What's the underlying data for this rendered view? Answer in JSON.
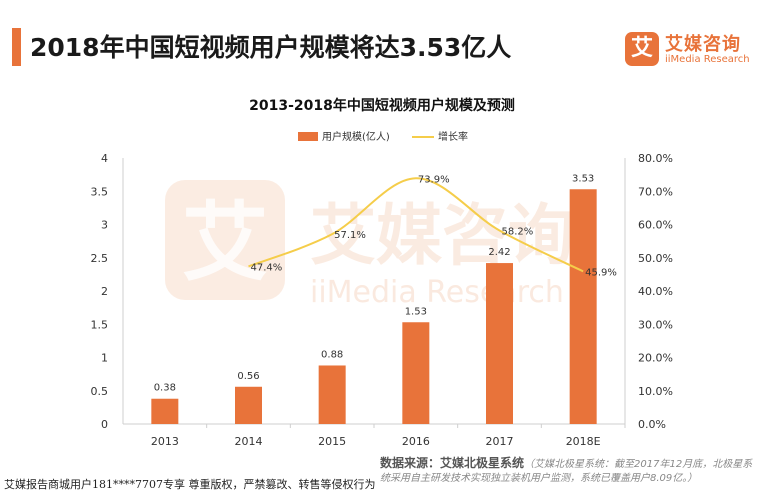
{
  "header": {
    "title": "2018年中国短视频用户规模将达3.53亿人",
    "logo_mark": "艾",
    "logo_cn": "艾媒咨询",
    "logo_en": "iiMedia Research"
  },
  "chart_data": {
    "type": "bar",
    "title": "2013-2018年中国短视频用户规模及预测",
    "categories": [
      "2013",
      "2014",
      "2015",
      "2016",
      "2017",
      "2018E"
    ],
    "series": [
      {
        "name": "用户规模(亿人)",
        "kind": "bar",
        "axis": "left",
        "values": [
          0.38,
          0.56,
          0.88,
          1.53,
          2.42,
          3.53
        ],
        "labels": [
          "0.38",
          "0.56",
          "0.88",
          "1.53",
          "2.42",
          "3.53"
        ]
      },
      {
        "name": "增长率",
        "kind": "line",
        "axis": "right",
        "values": [
          null,
          47.4,
          57.1,
          73.9,
          58.2,
          45.9
        ],
        "labels": [
          "",
          "47.4%",
          "57.1%",
          "73.9%",
          "58.2%",
          "45.9%"
        ]
      }
    ],
    "y_left": {
      "min": 0,
      "max": 4,
      "ticks": [
        "0",
        "0.5",
        "1",
        "1.5",
        "2",
        "2.5",
        "3",
        "3.5",
        "4"
      ]
    },
    "y_right": {
      "min": 0,
      "max": 80,
      "ticks": [
        "0.0%",
        "10.0%",
        "20.0%",
        "30.0%",
        "40.0%",
        "50.0%",
        "60.0%",
        "70.0%",
        "80.0%"
      ]
    },
    "legend_position": "top-center",
    "colors": {
      "bar": "#e8733a",
      "line": "#f5cd4a",
      "axis": "#cfcfcf",
      "watermark": "#f7dcca"
    },
    "watermark": {
      "cn": "艾媒咨询",
      "en": "iiMedia Research",
      "mark": "艾"
    }
  },
  "source": {
    "label": "数据来源：艾媒北极星系统",
    "note": "（艾媒北极星系统：截至2017年12月底，北极星系统采用自主研发技术实现独立装机用户监测，系统已覆盖用户8.09亿。）"
  },
  "footer": {
    "note": "艾媒报告商城用户181****7707专享 尊重版权，严禁篡改、转售等侵权行为"
  }
}
